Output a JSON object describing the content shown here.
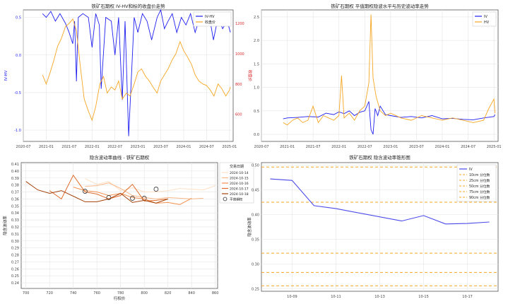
{
  "chart_data": [
    {
      "type": "line",
      "title": "铁矿石期权 IV-HV和标的收盘价走势",
      "ylabel_left": "IV-HV",
      "ylabel_right": "收盘价",
      "x_ticks": [
        "2020-07",
        "2021-01",
        "2021-07",
        "2022-01",
        "2022-07",
        "2023-01",
        "2023-07",
        "2024-01",
        "2024-07",
        "2025-01"
      ],
      "y_left_ticks": [
        "0.5",
        "0.0",
        "-0.5",
        "-1.0"
      ],
      "y_right_ticks": [
        "1200",
        "1000",
        "800",
        "600"
      ],
      "ylim_left": [
        -1.15,
        0.6
      ],
      "ylim_right": [
        420,
        1290
      ],
      "grid": true,
      "legend_position": "top-right",
      "legend": [
        "IV-HV",
        "收盘价"
      ],
      "series": [
        {
          "name": "IV-HV",
          "axis": "left",
          "color": "#1f1ff0",
          "x": [
            2020.92,
            2021.0,
            2021.1,
            2021.2,
            2021.3,
            2021.42,
            2021.5,
            2021.58,
            2021.62,
            2021.66,
            2021.7,
            2021.8,
            2021.92,
            2022.0,
            2022.08,
            2022.16,
            2022.2,
            2022.3,
            2022.42,
            2022.5,
            2022.58,
            2022.66,
            2022.72,
            2022.8,
            2022.92,
            2023.0,
            2023.1,
            2023.2,
            2023.3,
            2023.42,
            2023.5,
            2023.58,
            2023.66,
            2023.75,
            2023.85,
            2023.95,
            2024.05,
            2024.15,
            2024.25,
            2024.35,
            2024.45,
            2024.55,
            2024.65,
            2024.75,
            2024.85,
            2024.95,
            2025.02
          ],
          "values": [
            0.55,
            0.5,
            0.58,
            0.45,
            0.55,
            0.42,
            0.3,
            0.15,
            0.45,
            -0.35,
            0.5,
            0.55,
            0.5,
            0.1,
            0.55,
            0.4,
            -0.45,
            0.5,
            0.45,
            0.0,
            0.5,
            -0.6,
            0.45,
            -1.08,
            0.5,
            0.3,
            0.55,
            0.45,
            0.2,
            0.5,
            0.6,
            0.35,
            0.45,
            0.55,
            0.3,
            0.5,
            0.4,
            0.55,
            0.3,
            0.5,
            0.45,
            0.55,
            0.2,
            0.5,
            0.35,
            0.45,
            0.3
          ]
        },
        {
          "name": "收盘价",
          "axis": "right",
          "color": "#f5a623",
          "x": [
            2020.92,
            2021.0,
            2021.08,
            2021.17,
            2021.25,
            2021.33,
            2021.42,
            2021.5,
            2021.58,
            2021.66,
            2021.75,
            2021.83,
            2021.92,
            2022.0,
            2022.08,
            2022.17,
            2022.25,
            2022.33,
            2022.42,
            2022.5,
            2022.58,
            2022.66,
            2022.75,
            2022.83,
            2022.92,
            2023.0,
            2023.08,
            2023.17,
            2023.25,
            2023.33,
            2023.42,
            2023.5,
            2023.58,
            2023.66,
            2023.75,
            2023.83,
            2023.92,
            2024.0,
            2024.08,
            2024.17,
            2024.25,
            2024.33,
            2024.42,
            2024.5,
            2024.58,
            2024.66,
            2024.75,
            2024.83,
            2024.92,
            2025.0,
            2025.02
          ],
          "values": [
            860,
            800,
            870,
            960,
            1050,
            1100,
            1180,
            1200,
            1230,
            1150,
            900,
            700,
            620,
            560,
            650,
            800,
            850,
            740,
            780,
            760,
            820,
            700,
            740,
            720,
            800,
            880,
            900,
            850,
            820,
            780,
            740,
            820,
            860,
            900,
            960,
            1000,
            1080,
            1020,
            980,
            930,
            860,
            820,
            800,
            790,
            760,
            720,
            800,
            770,
            720,
            760,
            780
          ]
        }
      ]
    },
    {
      "type": "line",
      "title": "铁矿石期权 平值期权隐波水平与历史波动率走势",
      "x_ticks": [
        "2020-07",
        "2021-01",
        "2021-07",
        "2022-01",
        "2022-07",
        "2023-01",
        "2023-07",
        "2024-01",
        "2024-07",
        "2025-01"
      ],
      "y_ticks": [
        "2.5",
        "2.0",
        "1.5",
        "1.0",
        "0.5",
        "0.0"
      ],
      "ylim": [
        -0.15,
        2.65
      ],
      "grid": true,
      "legend_position": "top-right",
      "legend": [
        "IV",
        "HV"
      ],
      "series": [
        {
          "name": "IV",
          "color": "#1f1ff0",
          "x": [
            2020.92,
            2021.0,
            2021.2,
            2021.4,
            2021.6,
            2021.75,
            2021.9,
            2022.0,
            2022.1,
            2022.2,
            2022.3,
            2022.4,
            2022.5,
            2022.58,
            2022.62,
            2022.66,
            2022.7,
            2022.75,
            2022.8,
            2022.9,
            2023.0,
            2023.2,
            2023.4,
            2023.6,
            2023.8,
            2024.0,
            2024.2,
            2024.4,
            2024.6,
            2024.8,
            2025.0,
            2025.02
          ],
          "values": [
            0.33,
            0.35,
            0.36,
            0.38,
            0.37,
            0.45,
            0.42,
            0.48,
            0.44,
            0.5,
            0.4,
            0.47,
            0.5,
            0.7,
            0.1,
            0.0,
            0.55,
            0.4,
            0.6,
            0.42,
            0.4,
            0.36,
            0.38,
            0.35,
            0.4,
            0.33,
            0.34,
            0.32,
            0.31,
            0.35,
            0.38,
            0.42
          ]
        },
        {
          "name": "HV",
          "color": "#f5a623",
          "x": [
            2020.92,
            2021.0,
            2021.1,
            2021.2,
            2021.3,
            2021.4,
            2021.5,
            2021.6,
            2021.7,
            2021.8,
            2021.9,
            2022.0,
            2022.05,
            2022.1,
            2022.2,
            2022.3,
            2022.4,
            2022.5,
            2022.58,
            2022.62,
            2022.66,
            2022.72,
            2022.8,
            2022.9,
            2023.0,
            2023.2,
            2023.4,
            2023.6,
            2023.8,
            2024.0,
            2024.2,
            2024.4,
            2024.6,
            2024.8,
            2024.9,
            2025.0,
            2025.02
          ],
          "values": [
            0.25,
            0.2,
            0.3,
            0.35,
            0.25,
            0.3,
            0.6,
            0.25,
            0.4,
            0.35,
            0.3,
            0.4,
            1.25,
            0.35,
            0.45,
            0.3,
            0.5,
            0.6,
            1.1,
            2.55,
            1.2,
            0.8,
            0.5,
            0.4,
            0.45,
            0.35,
            0.3,
            0.4,
            0.35,
            0.3,
            0.35,
            0.3,
            0.25,
            0.3,
            0.55,
            0.75,
            0.45
          ]
        }
      ]
    },
    {
      "type": "line",
      "title": "隐含波动率曲线 - 铁矿石期权",
      "xlabel": "行权价",
      "ylabel": "隐含波动率",
      "xlim": [
        696,
        862
      ],
      "ylim": [
        0.232,
        0.412
      ],
      "x_ticks": [
        700,
        720,
        740,
        760,
        780,
        800,
        820,
        840,
        860
      ],
      "y_ticks": [
        0.41,
        0.4,
        0.39,
        0.38,
        0.37,
        0.36,
        0.35,
        0.34,
        0.33,
        0.32,
        0.31,
        0.3,
        0.29,
        0.28,
        0.27,
        0.26,
        0.25,
        0.24
      ],
      "grid": true,
      "legend_position": "upper-right",
      "legend_title": "交易日期",
      "atm_label": "平值期权",
      "series": [
        {
          "name": "2024-10-14",
          "color": "#fde0c5",
          "x": [
            750,
            760,
            770,
            780,
            790,
            800,
            810,
            820,
            830,
            840,
            850,
            860
          ],
          "values": [
            0.389,
            0.381,
            0.385,
            0.372,
            0.376,
            0.37,
            0.37,
            0.372,
            0.375,
            0.374,
            0.373,
            0.379
          ],
          "atm": [
            810,
            0.374
          ]
        },
        {
          "name": "2024-10-15",
          "color": "#f9b989",
          "x": [
            750,
            760,
            770,
            780,
            790,
            800,
            810,
            820,
            830,
            840,
            850
          ],
          "values": [
            0.378,
            0.379,
            0.383,
            0.375,
            0.365,
            0.362,
            0.36,
            0.362,
            0.361,
            0.36,
            0.361
          ],
          "atm": [
            800,
            0.361
          ]
        },
        {
          "name": "2024-10-16",
          "color": "#f29152",
          "x": [
            740,
            750,
            760,
            770,
            780,
            790,
            800,
            810,
            820,
            830,
            840
          ],
          "values": [
            0.377,
            0.372,
            0.37,
            0.365,
            0.368,
            0.362,
            0.36,
            0.354,
            0.355,
            0.352,
            0.361
          ],
          "atm": [
            790,
            0.361
          ]
        },
        {
          "name": "2024-10-17",
          "color": "#de6b2a",
          "x": [
            720,
            730,
            740,
            750,
            760,
            770,
            780,
            790,
            800,
            810,
            820
          ],
          "values": [
            0.372,
            0.36,
            0.394,
            0.37,
            0.367,
            0.36,
            0.365,
            0.381,
            0.357,
            0.358,
            0.36
          ],
          "atm": [
            770,
            0.362
          ]
        },
        {
          "name": "2024-10-18",
          "color": "#a3420b",
          "x": [
            700,
            710,
            720,
            730,
            740,
            750,
            760,
            770,
            780,
            790,
            800,
            810,
            820
          ],
          "values": [
            0.385,
            0.373,
            0.368,
            0.372,
            0.364,
            0.356,
            0.356,
            0.36,
            0.368,
            0.355,
            0.358,
            0.354,
            0.36
          ],
          "atm": [
            750,
            0.371
          ]
        }
      ]
    },
    {
      "type": "line",
      "title": "铁矿石期权 隐含波动率锥形图",
      "ylabel": "隐含波动率",
      "ylim": [
        0.245,
        0.505
      ],
      "x_ticks": [
        "10-09",
        "10-11",
        "10-13",
        "10-15",
        "10-17"
      ],
      "y_ticks": [
        0.5,
        0.45,
        0.4,
        0.35,
        0.3,
        0.25
      ],
      "grid": true,
      "legend_position": "top-right",
      "series": [
        {
          "name": "IV",
          "color": "#4a4ae8",
          "dates": [
            "10-08",
            "10-09",
            "10-10",
            "10-11",
            "10-14",
            "10-15",
            "10-16",
            "10-17",
            "10-18"
          ],
          "values": [
            0.472,
            0.469,
            0.418,
            0.412,
            0.387,
            0.398,
            0.381,
            0.382,
            0.385
          ]
        }
      ],
      "percentiles": [
        {
          "name": "10cm 分位数",
          "value": 0.256,
          "color": "#f5a623"
        },
        {
          "name": "25cm 分位数",
          "value": 0.283,
          "color": "#f5a623"
        },
        {
          "name": "50cm 分位数",
          "value": 0.322,
          "color": "#f5a623"
        },
        {
          "name": "75cm 分位数",
          "value": 0.425,
          "color": "#f5a623"
        },
        {
          "name": "90cm 分位数",
          "value": 0.496,
          "color": "#f5a623"
        }
      ]
    }
  ]
}
